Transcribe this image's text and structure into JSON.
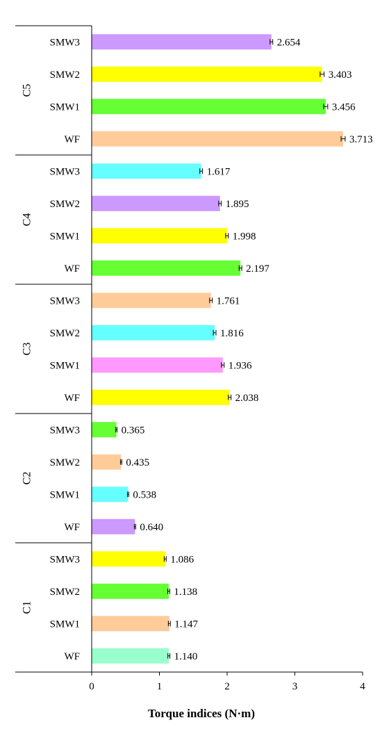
{
  "chart_data": {
    "type": "bar",
    "orientation": "horizontal",
    "xlabel": "Torque indices (N·m)",
    "ylabel": "",
    "xlim": [
      0,
      4
    ],
    "xticks": [
      "0",
      "1",
      "2",
      "3",
      "4"
    ],
    "grid": false,
    "legend": "none",
    "groups": [
      {
        "name": "C5",
        "bars": [
          {
            "label": "SMW3",
            "value": 2.654,
            "value_label": "2.654",
            "error": 0.02,
            "color": "#CC99FF"
          },
          {
            "label": "SMW2",
            "value": 3.403,
            "value_label": "3.403",
            "error": 0.03,
            "color": "#FFFF00"
          },
          {
            "label": "SMW1",
            "value": 3.456,
            "value_label": "3.456",
            "error": 0.03,
            "color": "#66FF33"
          },
          {
            "label": "WF",
            "value": 3.713,
            "value_label": "3.713",
            "error": 0.03,
            "color": "#FFCC99"
          }
        ]
      },
      {
        "name": "C4",
        "bars": [
          {
            "label": "SMW3",
            "value": 1.617,
            "value_label": "1.617",
            "error": 0.02,
            "color": "#66FFFF"
          },
          {
            "label": "SMW2",
            "value": 1.895,
            "value_label": "1.895",
            "error": 0.02,
            "color": "#CC99FF"
          },
          {
            "label": "SMW1",
            "value": 1.998,
            "value_label": "1.998",
            "error": 0.02,
            "color": "#FFFF00"
          },
          {
            "label": "WF",
            "value": 2.197,
            "value_label": "2.197",
            "error": 0.02,
            "color": "#66FF33"
          }
        ]
      },
      {
        "name": "C3",
        "bars": [
          {
            "label": "SMW3",
            "value": 1.761,
            "value_label": "1.761",
            "error": 0.02,
            "color": "#FFCC99"
          },
          {
            "label": "SMW2",
            "value": 1.816,
            "value_label": "1.816",
            "error": 0.02,
            "color": "#66FFFF"
          },
          {
            "label": "SMW1",
            "value": 1.936,
            "value_label": "1.936",
            "error": 0.02,
            "color": "#FF99FF"
          },
          {
            "label": "WF",
            "value": 2.038,
            "value_label": "2.038",
            "error": 0.02,
            "color": "#FFFF00"
          }
        ]
      },
      {
        "name": "C2",
        "bars": [
          {
            "label": "SMW3",
            "value": 0.365,
            "value_label": "0.365",
            "error": 0.01,
            "color": "#66FF33"
          },
          {
            "label": "SMW2",
            "value": 0.435,
            "value_label": "0.435",
            "error": 0.01,
            "color": "#FFCC99"
          },
          {
            "label": "SMW1",
            "value": 0.538,
            "value_label": "0.538",
            "error": 0.01,
            "color": "#66FFFF"
          },
          {
            "label": "WF",
            "value": 0.64,
            "value_label": "0.640",
            "error": 0.01,
            "color": "#CC99FF"
          }
        ]
      },
      {
        "name": "C1",
        "bars": [
          {
            "label": "SMW3",
            "value": 1.086,
            "value_label": "1.086",
            "error": 0.015,
            "color": "#FFFF00"
          },
          {
            "label": "SMW2",
            "value": 1.138,
            "value_label": "1.138",
            "error": 0.015,
            "color": "#66FF33"
          },
          {
            "label": "SMW1",
            "value": 1.147,
            "value_label": "1.147",
            "error": 0.015,
            "color": "#FFCC99"
          },
          {
            "label": "WF",
            "value": 1.14,
            "value_label": "1.140",
            "error": 0.015,
            "color": "#99FFCC"
          }
        ]
      }
    ]
  }
}
